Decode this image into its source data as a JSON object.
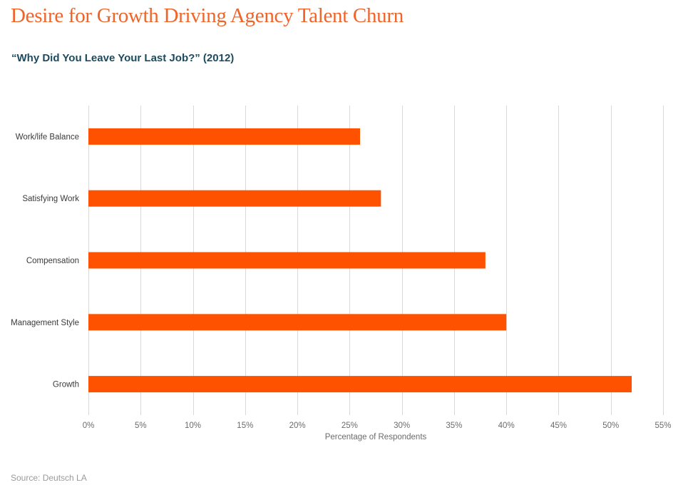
{
  "header": {
    "title": "Desire for Growth Driving Agency Talent Churn",
    "subtitle": "“Why Did You Leave Your Last Job?” (2012)"
  },
  "footer": {
    "source": "Source: Deutsch LA"
  },
  "colors": {
    "bar": "#ff5200",
    "title": "#f0642a",
    "subtitle": "#1d4a5e",
    "grid": "#d9d9d9"
  },
  "chart_data": {
    "type": "bar",
    "orientation": "horizontal",
    "title": "“Why Did You Leave Your Last Job?” (2012)",
    "xlabel": "Percentage of Respondents",
    "ylabel": "",
    "categories": [
      "Work/life Balance",
      "Satisfying Work",
      "Compensation",
      "Management Style",
      "Growth"
    ],
    "values": [
      26,
      28,
      38,
      40,
      52
    ],
    "xlim": [
      0,
      55
    ],
    "xticks": [
      0,
      5,
      10,
      15,
      20,
      25,
      30,
      35,
      40,
      45,
      50,
      55
    ],
    "xtick_labels": [
      "0%",
      "5%",
      "10%",
      "15%",
      "20%",
      "25%",
      "30%",
      "35%",
      "40%",
      "45%",
      "50%",
      "55%"
    ],
    "grid": true,
    "legend": "none"
  }
}
